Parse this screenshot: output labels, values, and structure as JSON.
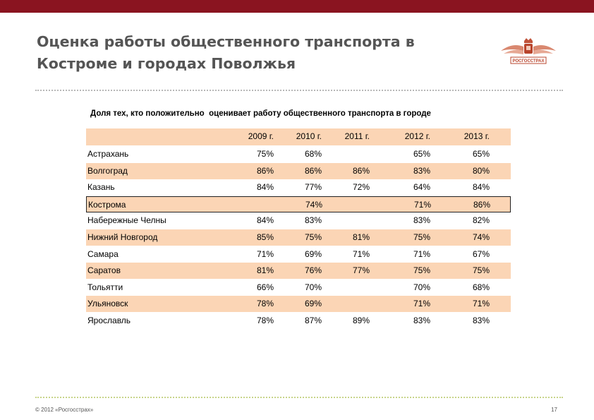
{
  "title_line1": "Оценка работы общественного транспорта в",
  "title_line2": "Костроме и городах Поволжья",
  "logo_text": "РОСГОССТРАХ",
  "subtitle": "Доля тех, кто положительно  оценивает работу общественного транспорта в городе",
  "columns": [
    "2009 г.",
    "2010 г.",
    "2011 г.",
    "2012 г.",
    "2013 г."
  ],
  "rows": [
    {
      "city": "Астрахань",
      "values": [
        "75%",
        "68%",
        "",
        "65%",
        "65%"
      ],
      "shaded": false
    },
    {
      "city": "Волгоград",
      "values": [
        "86%",
        "86%",
        "86%",
        "83%",
        "80%"
      ],
      "shaded": true
    },
    {
      "city": "Казань",
      "values": [
        "84%",
        "77%",
        "72%",
        "64%",
        "84%"
      ],
      "shaded": false
    },
    {
      "city": "Кострома",
      "values": [
        "",
        "74%",
        "",
        "71%",
        "86%"
      ],
      "shaded": true,
      "highlighted": true
    },
    {
      "city": "Набережные Челны",
      "values": [
        "84%",
        "83%",
        "",
        "83%",
        "82%"
      ],
      "shaded": false
    },
    {
      "city": "Нижний Новгород",
      "values": [
        "85%",
        "75%",
        "81%",
        "75%",
        "74%"
      ],
      "shaded": true
    },
    {
      "city": "Самара",
      "values": [
        "71%",
        "69%",
        "71%",
        "71%",
        "67%"
      ],
      "shaded": false
    },
    {
      "city": "Саратов",
      "values": [
        "81%",
        "76%",
        "77%",
        "75%",
        "75%"
      ],
      "shaded": true
    },
    {
      "city": "Тольятти",
      "values": [
        "66%",
        "70%",
        "",
        "70%",
        "68%"
      ],
      "shaded": false
    },
    {
      "city": "Ульяновск",
      "values": [
        "78%",
        "69%",
        "",
        "71%",
        "71%"
      ],
      "shaded": true
    },
    {
      "city": "Ярославль",
      "values": [
        "78%",
        "87%",
        "89%",
        "83%",
        "83%"
      ],
      "shaded": false
    }
  ],
  "footer_copyright": "© 2012 «Росгосстрах»",
  "page_number": "17",
  "colors": {
    "top_bar": "#8a1420",
    "row_shade": "#fbd5b5",
    "title": "#555555",
    "logo": "#b8442c"
  }
}
